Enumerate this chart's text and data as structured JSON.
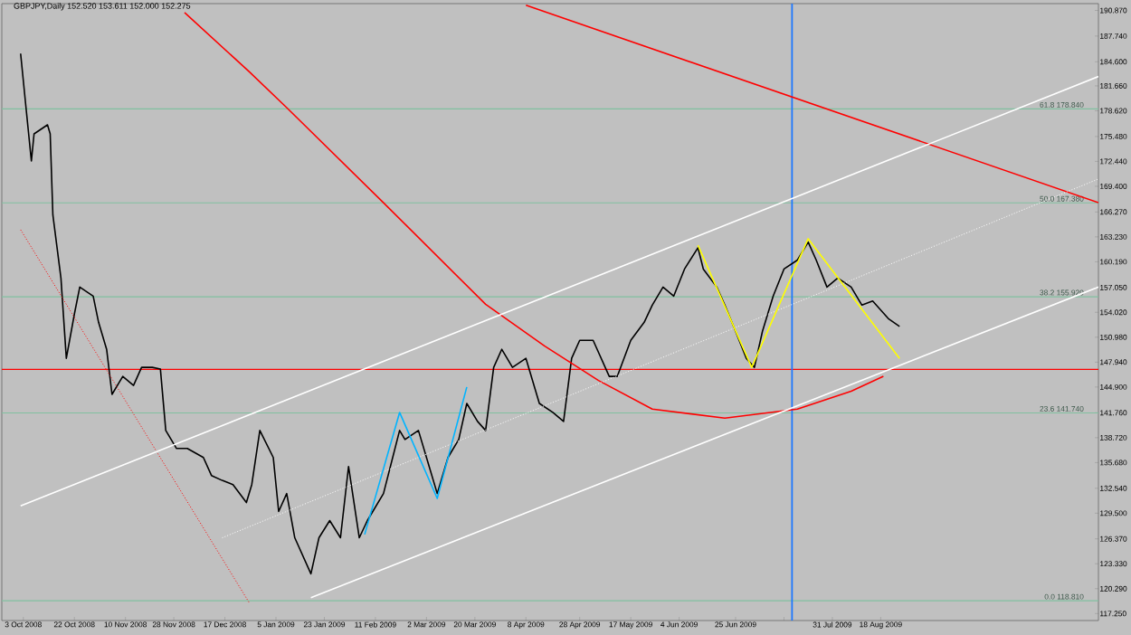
{
  "chart_data": {
    "type": "line",
    "title": "GBPJPY,Daily 152.520 153.611 152.000 152.275",
    "xlim": [
      "2008-09-25",
      "2009-11-07"
    ],
    "ylim": [
      116.4,
      191.7
    ],
    "xticks": [
      {
        "value": "2008-10-03",
        "label": "3 Oct 2008"
      },
      {
        "value": "2008-10-22",
        "label": "22 Oct 2008"
      },
      {
        "value": "2008-11-10",
        "label": "10 Nov 2008"
      },
      {
        "value": "2008-11-28",
        "label": "28 Nov 2008"
      },
      {
        "value": "2008-12-17",
        "label": "17 Dec 2008"
      },
      {
        "value": "2009-01-05",
        "label": "5 Jan 2009"
      },
      {
        "value": "2009-01-23",
        "label": "23 Jan 2009"
      },
      {
        "value": "2009-02-11",
        "label": "11 Feb 2009"
      },
      {
        "value": "2009-03-02",
        "label": "2 Mar 2009"
      },
      {
        "value": "2009-03-20",
        "label": "20 Mar 2009"
      },
      {
        "value": "2009-04-08",
        "label": "8 Apr 2009"
      },
      {
        "value": "2009-04-28",
        "label": "28 Apr 2009"
      },
      {
        "value": "2009-05-17",
        "label": "17 May 2009"
      },
      {
        "value": "2009-06-04",
        "label": "4 Jun 2009"
      },
      {
        "value": "2009-06-25",
        "label": "25 Jun 2009"
      },
      {
        "value": "2009-07-13",
        "label": null
      },
      {
        "value": "2009-07-31",
        "label": "31 Jul 2009"
      },
      {
        "value": "2009-08-18",
        "label": "18 Aug 2009"
      }
    ],
    "yticks": [
      {
        "value": 117.25,
        "label": "117.250"
      },
      {
        "value": 120.29,
        "label": "120.290"
      },
      {
        "value": 123.33,
        "label": "123.330"
      },
      {
        "value": 126.37,
        "label": "126.370"
      },
      {
        "value": 129.5,
        "label": "129.500"
      },
      {
        "value": 132.54,
        "label": "132.540"
      },
      {
        "value": 135.68,
        "label": "135.680"
      },
      {
        "value": 138.72,
        "label": "138.720"
      },
      {
        "value": 141.76,
        "label": "141.760"
      },
      {
        "value": 144.9,
        "label": "144.900"
      },
      {
        "value": 147.94,
        "label": "147.940"
      },
      {
        "value": 150.98,
        "label": "150.980"
      },
      {
        "value": 154.02,
        "label": "154.020"
      },
      {
        "value": 157.05,
        "label": "157.050"
      },
      {
        "value": 160.19,
        "label": "160.190"
      },
      {
        "value": 163.23,
        "label": "163.230"
      },
      {
        "value": 166.27,
        "label": "166.270"
      },
      {
        "value": 169.4,
        "label": "169.400"
      },
      {
        "value": 172.44,
        "label": "172.440"
      },
      {
        "value": 175.48,
        "label": "175.480"
      },
      {
        "value": 178.62,
        "label": "178.620"
      },
      {
        "value": 181.66,
        "label": "181.660"
      },
      {
        "value": 184.6,
        "label": "184.600"
      },
      {
        "value": 187.74,
        "label": "187.740"
      },
      {
        "value": 190.87,
        "label": "190.870"
      }
    ],
    "series": [
      {
        "color": "#000000",
        "x": [
          "2008-10-02",
          "2008-10-04",
          "2008-10-06",
          "2008-10-07",
          "2008-10-12",
          "2008-10-13",
          "2008-10-14",
          "2008-10-17",
          "2008-10-19",
          "2008-10-22",
          "2008-10-24",
          "2008-10-29",
          "2008-10-31",
          "2008-11-03",
          "2008-11-05",
          "2008-11-09",
          "2008-11-13",
          "2008-11-16",
          "2008-11-20",
          "2008-11-23",
          "2008-11-25",
          "2008-11-29",
          "2008-12-03",
          "2008-12-09",
          "2008-12-12",
          "2008-12-16",
          "2008-12-20",
          "2008-12-25",
          "2008-12-27",
          "2008-12-30",
          "2009-01-04",
          "2009-01-06",
          "2009-01-09",
          "2009-01-12",
          "2009-01-18",
          "2009-01-21",
          "2009-01-25",
          "2009-01-29",
          "2009-02-01",
          "2009-02-05",
          "2009-02-08",
          "2009-02-14",
          "2009-02-20",
          "2009-02-22",
          "2009-02-27",
          "2009-03-03",
          "2009-03-06",
          "2009-03-10",
          "2009-03-14",
          "2009-03-17",
          "2009-03-21",
          "2009-03-24",
          "2009-03-27",
          "2009-03-30",
          "2009-04-03",
          "2009-04-08",
          "2009-04-13",
          "2009-04-18",
          "2009-04-22",
          "2009-04-25",
          "2009-04-28",
          "2009-05-03",
          "2009-05-09",
          "2009-05-12",
          "2009-05-17",
          "2009-05-22",
          "2009-05-25",
          "2009-05-29",
          "2009-06-02",
          "2009-06-06",
          "2009-06-11",
          "2009-06-13",
          "2009-06-18",
          "2009-06-21",
          "2009-06-25",
          "2009-06-29",
          "2009-07-02",
          "2009-07-05",
          "2009-07-09",
          "2009-07-13",
          "2009-07-18",
          "2009-07-22",
          "2009-07-25",
          "2009-07-29",
          "2009-08-02",
          "2009-08-07",
          "2009-08-11",
          "2009-08-15",
          "2009-08-21",
          "2009-08-25"
        ],
        "values": [
          185.6,
          179.0,
          172.5,
          175.8,
          176.9,
          175.8,
          165.9,
          158.2,
          148.4,
          153.8,
          157.1,
          156.0,
          152.8,
          149.5,
          144.0,
          146.2,
          145.1,
          147.3,
          147.3,
          147.1,
          139.6,
          137.4,
          137.4,
          136.3,
          134.1,
          133.5,
          133.0,
          130.8,
          133.0,
          139.6,
          136.3,
          129.7,
          131.9,
          126.5,
          122.1,
          126.5,
          128.6,
          126.5,
          135.2,
          126.5,
          128.6,
          131.9,
          139.6,
          138.5,
          139.6,
          135.2,
          131.9,
          136.3,
          138.5,
          142.9,
          140.7,
          139.6,
          147.3,
          149.5,
          147.3,
          148.4,
          142.9,
          141.8,
          140.7,
          148.4,
          150.6,
          150.6,
          146.2,
          146.2,
          150.6,
          152.8,
          154.9,
          157.1,
          156.0,
          159.3,
          161.9,
          159.3,
          157.1,
          154.9,
          151.7,
          148.4,
          147.3,
          151.7,
          156.0,
          159.3,
          160.4,
          162.6,
          160.4,
          157.1,
          158.2,
          157.1,
          154.9,
          155.4,
          153.2,
          152.3
        ]
      },
      {
        "color": "#ff0000",
        "x": [
          "2008-12-02",
          "2008-12-26",
          "2009-01-09",
          "2009-02-14",
          "2009-03-24",
          "2009-04-15",
          "2009-05-05",
          "2009-05-25",
          "2009-06-21",
          "2009-07-18",
          "2009-08-07",
          "2009-08-19"
        ],
        "values": [
          190.6,
          183.4,
          179.0,
          167.4,
          155.0,
          149.9,
          145.7,
          142.2,
          141.1,
          142.2,
          144.4,
          146.2
        ]
      },
      {
        "color": "#ff0000",
        "x": [
          "2009-04-08",
          "2009-11-07"
        ],
        "values": [
          191.5,
          167.4
        ]
      },
      {
        "color": "#ff0000",
        "line_style": "dotted",
        "x": [
          "2008-10-02",
          "2008-12-26"
        ],
        "values": [
          164.1,
          118.6
        ]
      },
      {
        "color": "#ffffff",
        "x": [
          "2008-10-02",
          "2009-11-07"
        ],
        "values": [
          130.4,
          182.8
        ]
      },
      {
        "color": "#ffffff",
        "x": [
          "2009-01-18",
          "2009-11-07"
        ],
        "values": [
          119.2,
          157.1
        ]
      },
      {
        "color": "#ffffff",
        "line_style": "dotted",
        "x": [
          "2008-12-16",
          "2009-11-07"
        ],
        "values": [
          126.5,
          170.3
        ]
      },
      {
        "color": "#00b4ff",
        "x": [
          "2009-02-07",
          "2009-02-20",
          "2009-03-06",
          "2009-03-17"
        ],
        "values": [
          126.9,
          141.8,
          131.3,
          144.9
        ]
      },
      {
        "color": "#ffff00",
        "x": [
          "2009-06-11",
          "2009-07-01",
          "2009-07-22",
          "2009-08-25"
        ],
        "values": [
          162.2,
          147.3,
          163.0,
          148.4
        ]
      }
    ],
    "ref_lines": [
      {
        "axis": "y",
        "value": 178.84,
        "label": "61.8 178.840",
        "color": "#80c0a0"
      },
      {
        "axis": "y",
        "value": 167.38,
        "label": "50.0 167.380",
        "color": "#80c0a0"
      },
      {
        "axis": "y",
        "value": 155.92,
        "label": "38.2 155.920",
        "color": "#80c0a0"
      },
      {
        "axis": "y",
        "value": 141.74,
        "label": "23.6 141.740",
        "color": "#80c0a0"
      },
      {
        "axis": "y",
        "value": 118.81,
        "label": "0.0 118.810",
        "color": "#80c0a0"
      },
      {
        "axis": "y",
        "value": 147.05,
        "color": "#ff0000"
      },
      {
        "axis": "x",
        "value": "2009-07-16",
        "color": "#1e78ff"
      }
    ]
  }
}
